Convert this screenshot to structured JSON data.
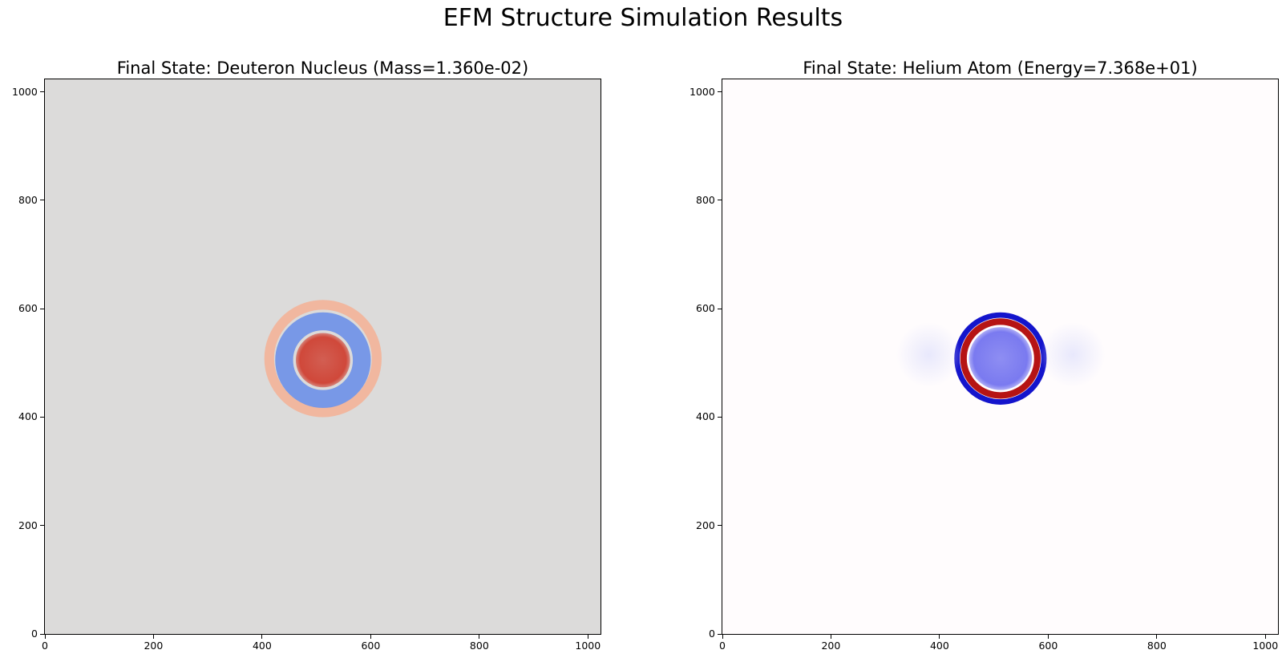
{
  "figure": {
    "title": "EFM Structure Simulation Results"
  },
  "chart_data": [
    {
      "type": "heatmap",
      "title": "Final State: Deuteron Nucleus (Mass=1.360e-02)",
      "xlabel": "",
      "ylabel": "",
      "xlim": [
        0,
        1023
      ],
      "ylim": [
        1023,
        0
      ],
      "x_ticks": [
        0,
        200,
        400,
        600,
        800,
        1000
      ],
      "y_ticks": [
        0,
        200,
        400,
        600,
        800,
        1000
      ],
      "colormap": "coolwarm",
      "background_color": "#dcdbda",
      "features": [
        {
          "shape": "disk",
          "center": [
            512,
            505
          ],
          "radius": 50,
          "color": "#d0483a"
        },
        {
          "shape": "ring",
          "center": [
            512,
            505
          ],
          "inner_radius": 55,
          "outer_radius": 88,
          "color": "#6f93e8"
        },
        {
          "shape": "ring",
          "center": [
            512,
            508
          ],
          "inner_radius": 90,
          "outer_radius": 108,
          "color": "#f2b49a"
        }
      ]
    },
    {
      "type": "heatmap",
      "title": "Final State: Helium Atom (Energy=7.368e+01)",
      "xlabel": "",
      "ylabel": "",
      "xlim": [
        0,
        1023
      ],
      "ylim": [
        1023,
        0
      ],
      "x_ticks": [
        0,
        200,
        400,
        600,
        800,
        1000
      ],
      "y_ticks": [
        0,
        200,
        400,
        600,
        800,
        1000
      ],
      "colormap": "seismic",
      "background_color": "#fffcfd",
      "features": [
        {
          "shape": "disk",
          "center": [
            512,
            508
          ],
          "radius": 58,
          "color": "#7a7af0"
        },
        {
          "shape": "ring",
          "center": [
            512,
            508
          ],
          "inner_radius": 62,
          "outer_radius": 74,
          "color": "#b00000"
        },
        {
          "shape": "ring",
          "center": [
            512,
            508
          ],
          "inner_radius": 75,
          "outer_radius": 85,
          "color": "#0000c8"
        },
        {
          "shape": "blob",
          "center": [
            380,
            515
          ],
          "radius": 60,
          "color": "#e8e8fc"
        },
        {
          "shape": "blob",
          "center": [
            645,
            515
          ],
          "radius": 60,
          "color": "#e8e8fc"
        }
      ]
    }
  ]
}
